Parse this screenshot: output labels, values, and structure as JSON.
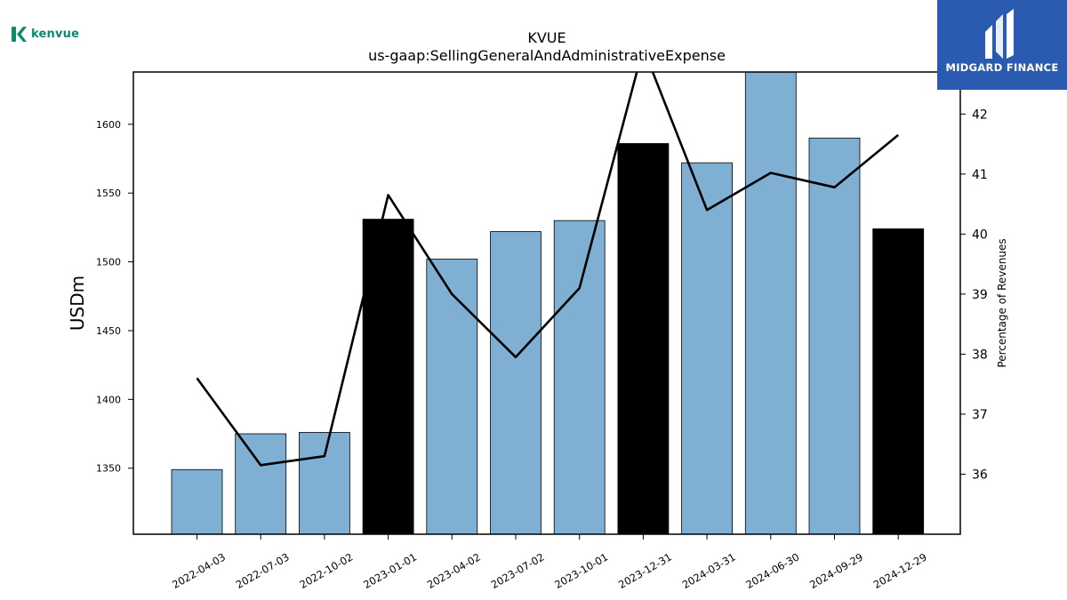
{
  "brand": {
    "left_logo_text": "kenvue",
    "right_logo_text": "MIDGARD FINANCE",
    "left_color": "#0a8c6c",
    "right_bg": "#2b5bb0"
  },
  "chart_data": {
    "type": "bar",
    "title": "KVUE",
    "subtitle": "us-gaap:SellingGeneralAndAdministrativeExpense",
    "ylabel": "USDm",
    "y2label": "Percentage of Revenues",
    "categories": [
      "2022-04-03",
      "2022-07-03",
      "2022-10-02",
      "2023-01-01",
      "2023-04-02",
      "2023-07-02",
      "2023-10-01",
      "2023-12-31",
      "2024-03-31",
      "2024-06-30",
      "2024-09-29",
      "2024-12-29"
    ],
    "bar_values": [
      1349,
      1375,
      1376,
      1531,
      1502,
      1522,
      1530,
      1586,
      1572,
      1640,
      1590,
      1524
    ],
    "bar_colors": [
      "#7fafd3",
      "#7fafd3",
      "#7fafd3",
      "#000000",
      "#7fafd3",
      "#7fafd3",
      "#7fafd3",
      "#000000",
      "#7fafd3",
      "#7fafd3",
      "#7fafd3",
      "#000000"
    ],
    "line_values": [
      37.6,
      36.15,
      36.3,
      40.65,
      39.0,
      37.95,
      39.1,
      43.1,
      40.4,
      41.02,
      40.78,
      41.65
    ],
    "ylim": [
      1302,
      1638
    ],
    "y2lim": [
      35.0,
      42.7
    ],
    "yticks": [
      1350,
      1400,
      1450,
      1500,
      1550,
      1600
    ],
    "y2ticks": [
      36,
      37,
      38,
      39,
      40,
      41,
      42
    ],
    "grid": false,
    "legend": "none"
  }
}
